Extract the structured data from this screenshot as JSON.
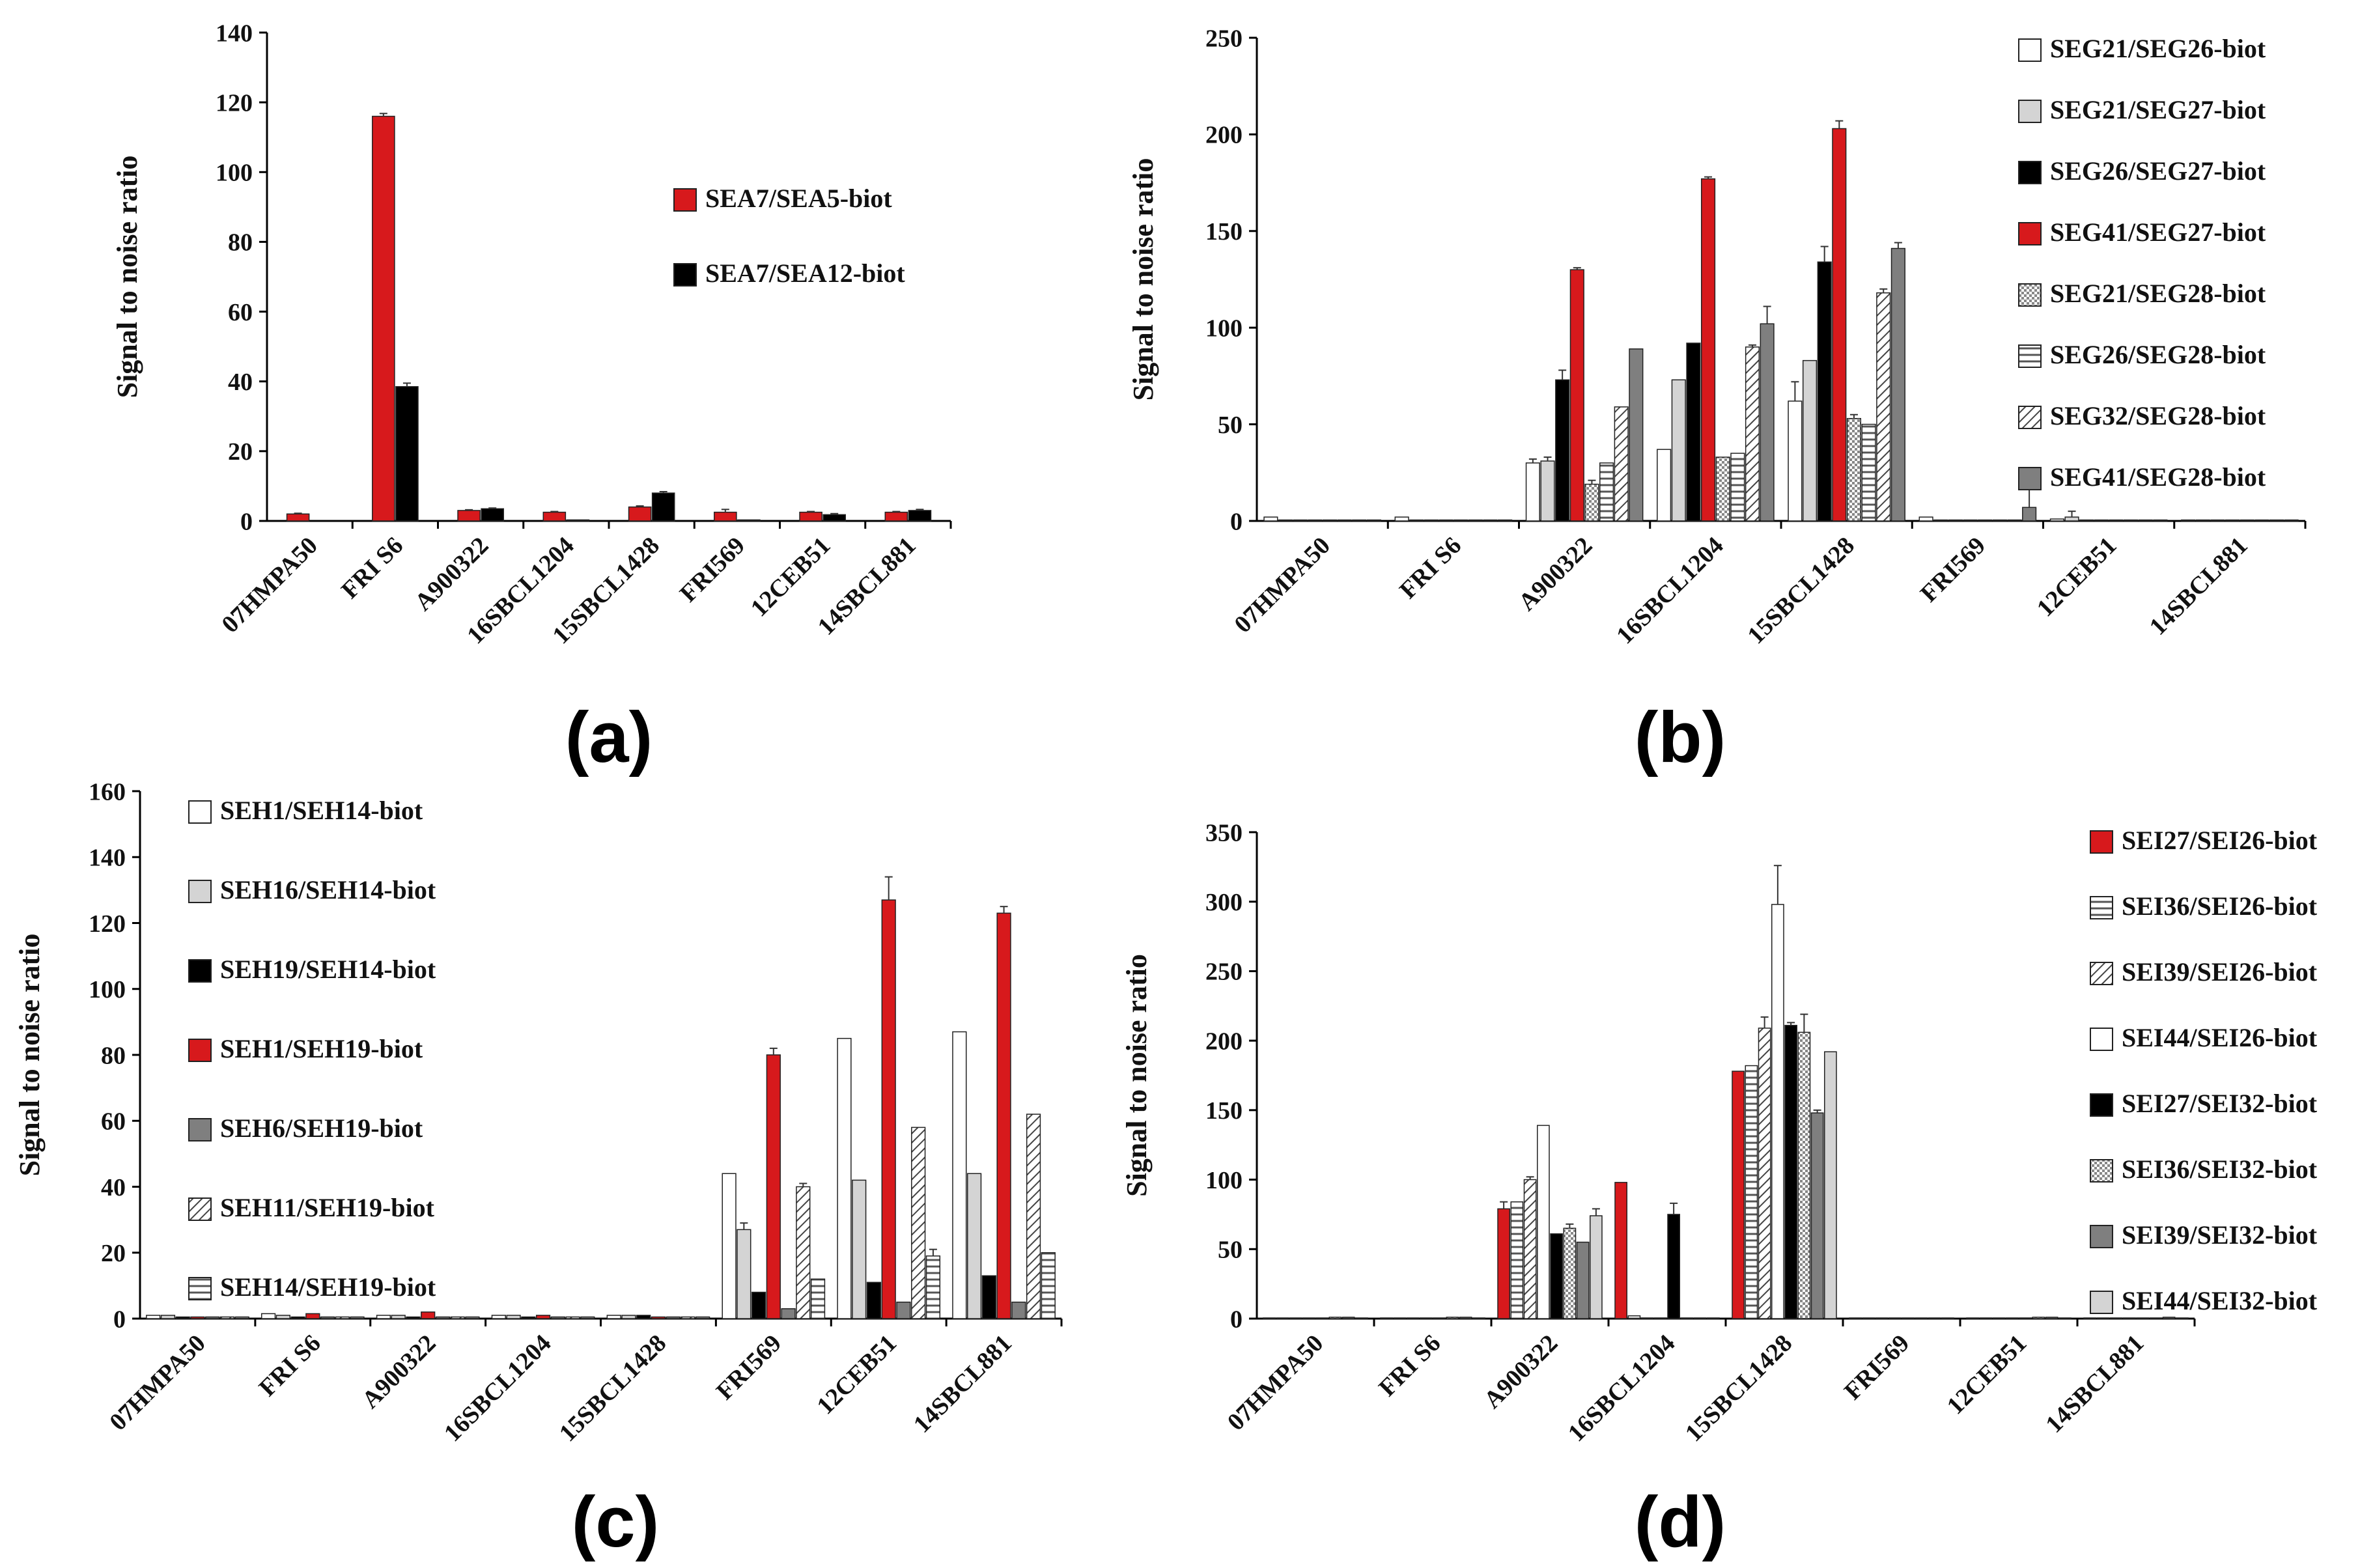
{
  "categories": [
    "07HMPA50",
    "FRI S6",
    "A900322",
    "16SBCL1204",
    "15SBCL1428",
    "FRI569",
    "12CEB51",
    "14SBCL881"
  ],
  "patterns": {
    "red": {
      "fill": "#d7191c"
    },
    "white": {
      "fill": "#ffffff"
    },
    "lightgray": {
      "fill": "#d4d4d4"
    },
    "black": {
      "fill": "#000000"
    },
    "darkgray": {
      "fill": "#7f7f7f"
    },
    "hstripe": {
      "fill": "#ffffff",
      "stroke": "#555555"
    },
    "diag": {
      "fill": "#ffffff",
      "stroke": "#444444"
    },
    "dots": {
      "fill": "#ffffff",
      "stroke": "#777777"
    }
  },
  "chart_data": [
    {
      "panel": "(a)",
      "type": "bar",
      "ylabel": "Signal to noise ratio",
      "ylim": [
        0,
        140
      ],
      "yticks": [
        0,
        20,
        40,
        60,
        80,
        100,
        120,
        140
      ],
      "legend_position": "inside-right",
      "series": [
        {
          "name": "SEA7/SEA5-biot",
          "pattern": "red",
          "values": [
            2.0,
            116.0,
            3.0,
            2.5,
            4.0,
            2.5,
            2.5,
            2.5
          ],
          "errors": [
            0.2,
            0.8,
            0.2,
            0.2,
            0.3,
            0.8,
            0.2,
            0.2
          ]
        },
        {
          "name": "SEA7/SEA12-biot",
          "pattern": "black",
          "values": [
            0.0,
            38.5,
            3.5,
            0.3,
            8.0,
            0.3,
            1.8,
            3.0
          ],
          "errors": [
            0,
            1.0,
            0.2,
            0,
            0.4,
            0,
            0.3,
            0.3
          ]
        }
      ]
    },
    {
      "panel": "(b)",
      "type": "bar",
      "ylabel": "Signal to noise ratio",
      "ylim": [
        0,
        250
      ],
      "yticks": [
        0,
        50,
        100,
        150,
        200,
        250
      ],
      "legend_position": "right",
      "series": [
        {
          "name": "SEG21/SEG26-biot",
          "pattern": "white",
          "values": [
            2,
            2,
            30,
            37,
            62,
            2,
            1,
            0.5
          ],
          "errors": [
            0,
            0,
            2,
            0,
            10,
            0,
            0,
            0
          ]
        },
        {
          "name": "SEG21/SEG27-biot",
          "pattern": "lightgray",
          "values": [
            0.5,
            0.5,
            31,
            73,
            83,
            0.5,
            2,
            0.5
          ],
          "errors": [
            0,
            0,
            2,
            0,
            0,
            0,
            3,
            0
          ]
        },
        {
          "name": "SEG26/SEG27-biot",
          "pattern": "black",
          "values": [
            0.5,
            0.5,
            73,
            92,
            134,
            0.5,
            0.5,
            0.5
          ],
          "errors": [
            0,
            0,
            5,
            0,
            8,
            0,
            0,
            0
          ]
        },
        {
          "name": "SEG41/SEG27-biot",
          "pattern": "red",
          "values": [
            0.5,
            0.5,
            130,
            177,
            203,
            0.5,
            0.5,
            0.5
          ],
          "errors": [
            0,
            0,
            1,
            1,
            4,
            0,
            0,
            0
          ]
        },
        {
          "name": "SEG21/SEG28-biot",
          "pattern": "dots",
          "values": [
            0.5,
            0.5,
            19,
            33,
            53,
            0.5,
            0.5,
            0.5
          ],
          "errors": [
            0,
            0,
            2,
            0,
            2,
            0,
            0,
            0
          ]
        },
        {
          "name": "SEG26/SEG28-biot",
          "pattern": "hstripe",
          "values": [
            0.5,
            0.5,
            30,
            35,
            50,
            0.5,
            0.5,
            0.5
          ],
          "errors": [
            0,
            0,
            0,
            0,
            0,
            0,
            0,
            0
          ]
        },
        {
          "name": "SEG32/SEG28-biot",
          "pattern": "diag",
          "values": [
            0.5,
            0.5,
            59,
            90,
            118,
            0.5,
            0.5,
            0.5
          ],
          "errors": [
            0,
            0,
            0,
            1,
            2,
            0,
            0,
            0
          ]
        },
        {
          "name": "SEG41/SEG28-biot",
          "pattern": "darkgray",
          "values": [
            0.5,
            0.5,
            89,
            102,
            141,
            7,
            0.5,
            0.5
          ],
          "errors": [
            0,
            0,
            0,
            9,
            3,
            10,
            0,
            0
          ]
        }
      ]
    },
    {
      "panel": "(c)",
      "type": "bar",
      "ylabel": "Signal to noise ratio",
      "ylim": [
        0,
        160
      ],
      "yticks": [
        0,
        20,
        40,
        60,
        80,
        100,
        120,
        140,
        160
      ],
      "legend_position": "top-left",
      "series": [
        {
          "name": "SEH1/SEH14-biot",
          "pattern": "white",
          "values": [
            1,
            1.5,
            1,
            1,
            1,
            44,
            85,
            87
          ],
          "errors": [
            0,
            0,
            0,
            0,
            0,
            0,
            0,
            0
          ]
        },
        {
          "name": "SEH16/SEH14-biot",
          "pattern": "lightgray",
          "values": [
            1,
            1,
            1,
            1,
            1,
            27,
            42,
            44
          ],
          "errors": [
            0,
            0,
            0,
            0,
            0,
            2,
            0,
            0
          ]
        },
        {
          "name": "SEH19/SEH14-biot",
          "pattern": "black",
          "values": [
            0.5,
            0.5,
            0.5,
            0.5,
            1,
            8,
            11,
            13
          ],
          "errors": [
            0,
            0,
            0,
            0,
            0,
            0,
            0,
            0
          ]
        },
        {
          "name": "SEH1/SEH19-biot",
          "pattern": "red",
          "values": [
            0.5,
            1.5,
            2,
            1,
            0.5,
            80,
            127,
            123
          ],
          "errors": [
            0,
            0,
            0,
            0,
            0,
            2,
            7,
            2
          ]
        },
        {
          "name": "SEH6/SEH19-biot",
          "pattern": "darkgray",
          "values": [
            0.5,
            0.5,
            0.5,
            0.5,
            0.5,
            3,
            5,
            5
          ],
          "errors": [
            0,
            0,
            0,
            0,
            0,
            0,
            0,
            0
          ]
        },
        {
          "name": "SEH11/SEH19-biot",
          "pattern": "diag",
          "values": [
            0.5,
            0.5,
            0.5,
            0.5,
            0.5,
            40,
            58,
            62
          ],
          "errors": [
            0,
            0,
            0,
            0,
            0,
            1,
            0,
            0
          ]
        },
        {
          "name": "SEH14/SEH19-biot",
          "pattern": "hstripe",
          "values": [
            0.5,
            0.5,
            0.5,
            0.5,
            0.5,
            12,
            19,
            20
          ],
          "errors": [
            0,
            0,
            0,
            0,
            0,
            0,
            2,
            0
          ]
        }
      ]
    },
    {
      "panel": "(d)",
      "type": "bar",
      "ylabel": "Signal to noise ratio",
      "ylim": [
        0,
        350
      ],
      "yticks": [
        0,
        50,
        100,
        150,
        200,
        250,
        300,
        350
      ],
      "legend_position": "right",
      "series": [
        {
          "name": "SEI27/SEI26-biot",
          "pattern": "red",
          "values": [
            0.5,
            0.5,
            79,
            98,
            178,
            0.5,
            0.5,
            0.5
          ],
          "errors": [
            0,
            0,
            5,
            0,
            0,
            0,
            0,
            0
          ]
        },
        {
          "name": "SEI36/SEI26-biot",
          "pattern": "hstripe",
          "values": [
            0.5,
            0.5,
            84,
            2,
            182,
            0.5,
            0.5,
            0.5
          ],
          "errors": [
            0,
            0,
            0,
            0,
            0,
            0,
            0,
            0
          ]
        },
        {
          "name": "SEI39/SEI26-biot",
          "pattern": "diag",
          "values": [
            0.5,
            0.5,
            100,
            0.5,
            209,
            0.5,
            0.5,
            0.5
          ],
          "errors": [
            0,
            0,
            2,
            0,
            8,
            0,
            0,
            0
          ]
        },
        {
          "name": "SEI44/SEI26-biot",
          "pattern": "white",
          "values": [
            0.5,
            0.5,
            139,
            0.5,
            298,
            0.5,
            0.5,
            0.5
          ],
          "errors": [
            0,
            0,
            0,
            0,
            28,
            0,
            0,
            0
          ]
        },
        {
          "name": "SEI27/SEI32-biot",
          "pattern": "black",
          "values": [
            0.5,
            0.5,
            61,
            75,
            211,
            0.5,
            0.5,
            0.5
          ],
          "errors": [
            0,
            0,
            0,
            8,
            2,
            0,
            0,
            0
          ]
        },
        {
          "name": "SEI36/SEI32-biot",
          "pattern": "dots",
          "values": [
            1,
            1,
            65,
            0.5,
            206,
            0.5,
            1,
            0.5
          ],
          "errors": [
            0,
            0,
            3,
            0,
            13,
            0,
            0,
            0
          ]
        },
        {
          "name": "SEI39/SEI32-biot",
          "pattern": "darkgray",
          "values": [
            1,
            1,
            55,
            0.5,
            148,
            0.5,
            1,
            1
          ],
          "errors": [
            0,
            0,
            0,
            0,
            2,
            0,
            0,
            0
          ]
        },
        {
          "name": "SEI44/SEI32-biot",
          "pattern": "lightgray",
          "values": [
            0.5,
            0.5,
            74,
            0.5,
            192,
            0.5,
            0.5,
            0.5
          ],
          "errors": [
            0,
            0,
            5,
            0,
            0,
            0,
            0,
            0
          ]
        }
      ]
    }
  ]
}
